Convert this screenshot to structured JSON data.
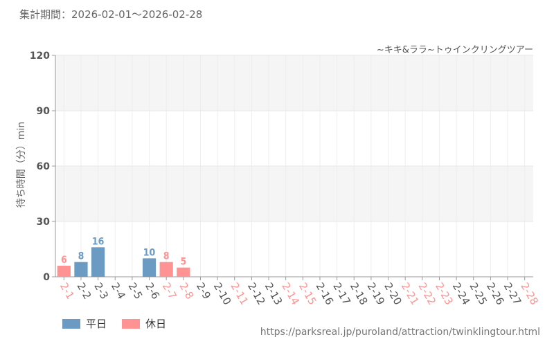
{
  "header": {
    "period_label": "集計期間：2026-02-01～2026-02-28"
  },
  "footer": {
    "url": "https://parksreal.jp/puroland/attraction/twinklingtour.html"
  },
  "colors": {
    "weekday": "#6b9bc3",
    "holiday": "#ff9393",
    "grid": "#e6e6e6",
    "band": "#f5f5f5"
  },
  "chart_data": {
    "type": "bar",
    "title": "~キキ&ララ~トゥインクリングツアー",
    "xlabel": "",
    "ylabel": "待ち時間（分）min",
    "ylim": [
      0,
      120
    ],
    "yticks": [
      0,
      30,
      60,
      90,
      120
    ],
    "grid": true,
    "legend_position": "bottom-left",
    "legend": [
      {
        "key": "weekday",
        "label": "平日"
      },
      {
        "key": "holiday",
        "label": "休日"
      }
    ],
    "categories": [
      "2-1",
      "2-2",
      "2-3",
      "2-4",
      "2-5",
      "2-6",
      "2-7",
      "2-8",
      "2-9",
      "2-10",
      "2-11",
      "2-12",
      "2-13",
      "2-14",
      "2-15",
      "2-16",
      "2-17",
      "2-18",
      "2-19",
      "2-20",
      "2-21",
      "2-22",
      "2-23",
      "2-24",
      "2-25",
      "2-26",
      "2-27",
      "2-28"
    ],
    "day_types": [
      "holiday",
      "weekday",
      "weekday",
      "weekday",
      "weekday",
      "weekday",
      "holiday",
      "holiday",
      "weekday",
      "weekday",
      "holiday",
      "weekday",
      "weekday",
      "holiday",
      "holiday",
      "weekday",
      "weekday",
      "weekday",
      "weekday",
      "weekday",
      "holiday",
      "holiday",
      "holiday",
      "weekday",
      "weekday",
      "weekday",
      "weekday",
      "holiday"
    ],
    "values": [
      6,
      8,
      16,
      null,
      null,
      10,
      8,
      5,
      null,
      null,
      null,
      null,
      null,
      null,
      null,
      null,
      null,
      null,
      null,
      null,
      null,
      null,
      null,
      null,
      null,
      null,
      null,
      null
    ]
  }
}
